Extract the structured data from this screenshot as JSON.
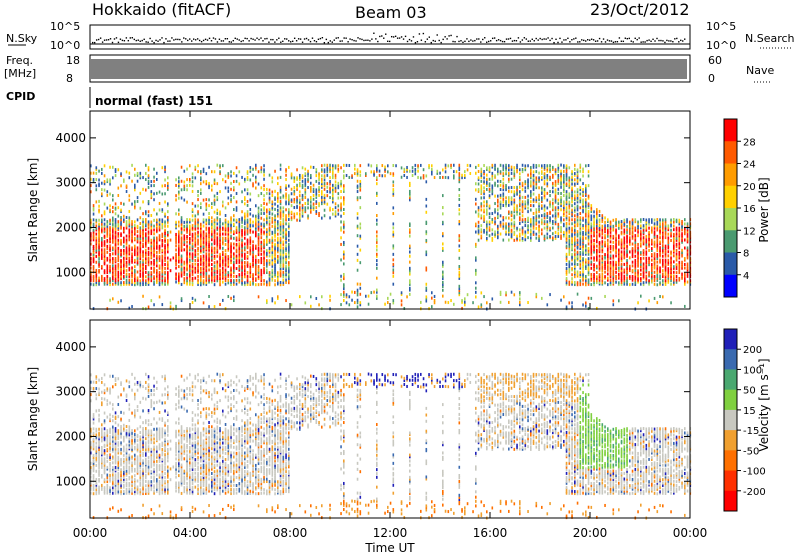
{
  "header": {
    "station": "Hokkaido (fitACF)",
    "beam": "Beam 03",
    "date": "23/Oct/2012"
  },
  "top_panels": {
    "nsky_label": "N.Sky",
    "nsky_top": "10^5",
    "nsky_bottom": "10^0",
    "nsearch_label": "N.Search",
    "nsearch_top": "10^5",
    "nsearch_bottom": "10^0",
    "freq_label": "Freq.",
    "freq_unit": "[MHz]",
    "freq_top": "18",
    "freq_bottom": "8",
    "nave_label": "Nave",
    "nave_top": "60",
    "nave_bottom": "0",
    "cpid_label": "CPID",
    "cpid_text": "normal (fast) 151"
  },
  "chart_data": [
    {
      "type": "heatmap",
      "panel": "power",
      "ylabel": "Slant Range [km]",
      "xlabel": "",
      "colorbar_label": "Power [dB]",
      "colorbar_ticks": [
        "28",
        "24",
        "20",
        "16",
        "12",
        "8",
        "4"
      ],
      "colorbar_colors": [
        "#ff0000",
        "#ff5a00",
        "#ff9c00",
        "#ffd000",
        "#a8d858",
        "#4a9a70",
        "#2a5aa8",
        "#0000ff"
      ],
      "ylim": [
        180,
        4600
      ],
      "yticks": [
        "1000",
        "2000",
        "3000",
        "4000"
      ],
      "xticks": [
        "00:00",
        "04:00",
        "08:00",
        "12:00",
        "16:00",
        "20:00",
        "00:00"
      ]
    },
    {
      "type": "heatmap",
      "panel": "velocity",
      "ylabel": "Slant Range [km]",
      "xlabel": "Time UT",
      "colorbar_label": "Velocity [m s⁻¹]",
      "colorbar_ticks": [
        "200",
        "100",
        "50",
        "15",
        "-15",
        "-50",
        "-100",
        "-200"
      ],
      "colorbar_colors": [
        "#2020b8",
        "#3a6ab0",
        "#4aa870",
        "#80d040",
        "#c8c8c0",
        "#f0a030",
        "#ff7000",
        "#ff3000",
        "#ff0000"
      ],
      "ylim": [
        180,
        4600
      ],
      "yticks": [
        "1000",
        "2000",
        "3000",
        "4000"
      ],
      "xticks": [
        "00:00",
        "04:00",
        "08:00",
        "12:00",
        "16:00",
        "20:00",
        "00:00"
      ]
    }
  ]
}
